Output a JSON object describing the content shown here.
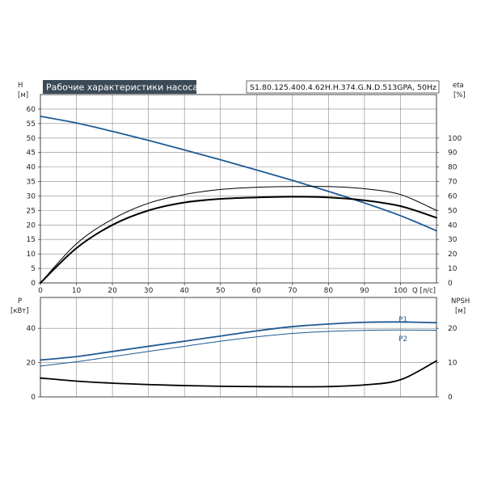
{
  "colors": {
    "title_bg": "#3c4a57",
    "blue_curve": "#1f5a94",
    "black_curve": "#000000",
    "grid": "#888888"
  },
  "header": {
    "title": "Рабочие характеристики насоса",
    "model": "S1.80.125.400.4.62H.H.374.G.N.D.513GPA, 50Hz"
  },
  "chart_data": [
    {
      "type": "line",
      "panel": "top",
      "xlabel": "Q [л/с]",
      "xlim": [
        0,
        110
      ],
      "x_ticks": [
        0,
        10,
        20,
        30,
        40,
        50,
        60,
        70,
        80,
        90,
        100
      ],
      "y_left": {
        "label_line1": "H",
        "label_line2": "[м]",
        "lim": [
          0,
          65
        ],
        "ticks": [
          0,
          5,
          10,
          15,
          20,
          25,
          30,
          35,
          40,
          45,
          50,
          55,
          60
        ]
      },
      "y_right": {
        "label_line1": "eta",
        "label_line2": "[%]",
        "lim": [
          0,
          130
        ],
        "ticks": [
          0,
          10,
          20,
          30,
          40,
          50,
          60,
          70,
          80,
          90,
          100
        ]
      },
      "grid": true,
      "series": [
        {
          "axis": "left",
          "color": "#1f5a94",
          "width": 1.8,
          "x": [
            0,
            10,
            20,
            30,
            40,
            50,
            60,
            70,
            80,
            90,
            100,
            110
          ],
          "y": [
            57.5,
            55.2,
            52.3,
            49.2,
            45.9,
            42.5,
            39.0,
            35.4,
            31.6,
            27.6,
            23.2,
            18.0
          ]
        },
        {
          "axis": "right",
          "color": "#000000",
          "width": 1,
          "x": [
            0,
            10,
            20,
            30,
            40,
            50,
            60,
            70,
            80,
            90,
            100,
            110
          ],
          "y": [
            0,
            27,
            44,
            55,
            61,
            64.5,
            66,
            66.5,
            66.5,
            65,
            61,
            50
          ]
        },
        {
          "axis": "right",
          "color": "#000000",
          "width": 2,
          "x": [
            0,
            10,
            20,
            30,
            40,
            50,
            60,
            70,
            80,
            90,
            100,
            110
          ],
          "y": [
            0,
            24,
            40,
            50,
            55.5,
            58,
            59,
            59.5,
            59,
            57,
            53,
            45
          ]
        }
      ]
    },
    {
      "type": "line",
      "panel": "bottom",
      "xlim": [
        0,
        110
      ],
      "y_left": {
        "label_line1": "P",
        "label_line2": "[кВт]",
        "lim": [
          0,
          58
        ],
        "ticks": [
          0,
          20,
          40
        ]
      },
      "y_right": {
        "label_line1": "NPSH",
        "label_line2": "[м]",
        "lim": [
          0,
          29
        ],
        "ticks": [
          0,
          10,
          20
        ]
      },
      "grid": true,
      "series": [
        {
          "name": "P1",
          "axis": "left",
          "color": "#1f5a94",
          "width": 1.8,
          "x": [
            0,
            10,
            20,
            30,
            40,
            50,
            60,
            70,
            80,
            90,
            100,
            110
          ],
          "y": [
            21.5,
            23.5,
            26.5,
            29.5,
            32.5,
            35.5,
            38.5,
            41,
            42.5,
            43.5,
            43.7,
            43.3
          ]
        },
        {
          "name": "P2",
          "axis": "left",
          "color": "#1f5a94",
          "width": 1,
          "x": [
            0,
            10,
            20,
            30,
            40,
            50,
            60,
            70,
            80,
            90,
            100,
            110
          ],
          "y": [
            18,
            20.5,
            23.5,
            26.5,
            29.5,
            32.5,
            35,
            37,
            38.2,
            38.8,
            39,
            38.9
          ]
        },
        {
          "axis": "right",
          "color": "#000000",
          "width": 1.8,
          "x": [
            0,
            10,
            20,
            30,
            40,
            50,
            60,
            70,
            80,
            90,
            100,
            110
          ],
          "y": [
            5.5,
            4.6,
            4.0,
            3.6,
            3.3,
            3.1,
            3.0,
            2.95,
            3.0,
            3.5,
            5.0,
            10.5
          ]
        }
      ]
    }
  ]
}
